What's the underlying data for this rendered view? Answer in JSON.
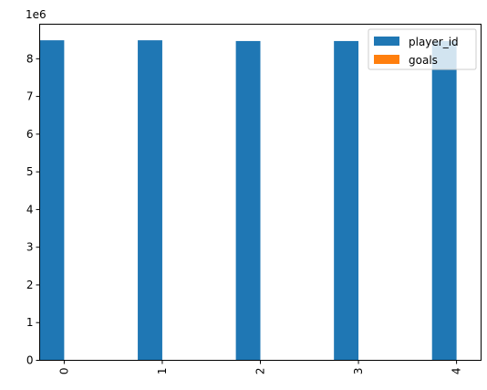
{
  "chart_data": {
    "type": "bar",
    "categories": [
      "0",
      "1",
      "2",
      "3",
      "4"
    ],
    "series": [
      {
        "name": "player_id",
        "values": [
          8490000,
          8490000,
          8470000,
          8470000,
          8470000
        ],
        "color": "#1f77b4"
      },
      {
        "name": "goals",
        "values": [
          0,
          0,
          0,
          0,
          0
        ],
        "color": "#ff7f0e"
      }
    ],
    "title": "",
    "xlabel": "",
    "ylabel": "",
    "ylim": [
      0,
      8916500
    ],
    "y_ticks": [
      {
        "value": 0,
        "label": "0"
      },
      {
        "value": 1000000,
        "label": "1"
      },
      {
        "value": 2000000,
        "label": "2"
      },
      {
        "value": 3000000,
        "label": "3"
      },
      {
        "value": 4000000,
        "label": "4"
      },
      {
        "value": 5000000,
        "label": "5"
      },
      {
        "value": 6000000,
        "label": "6"
      },
      {
        "value": 7000000,
        "label": "7"
      },
      {
        "value": 8000000,
        "label": "8"
      }
    ],
    "y_offset_label": "1e6",
    "x_tick_rotation": "vertical",
    "legend": {
      "placement": "top-right"
    },
    "grid": false
  }
}
